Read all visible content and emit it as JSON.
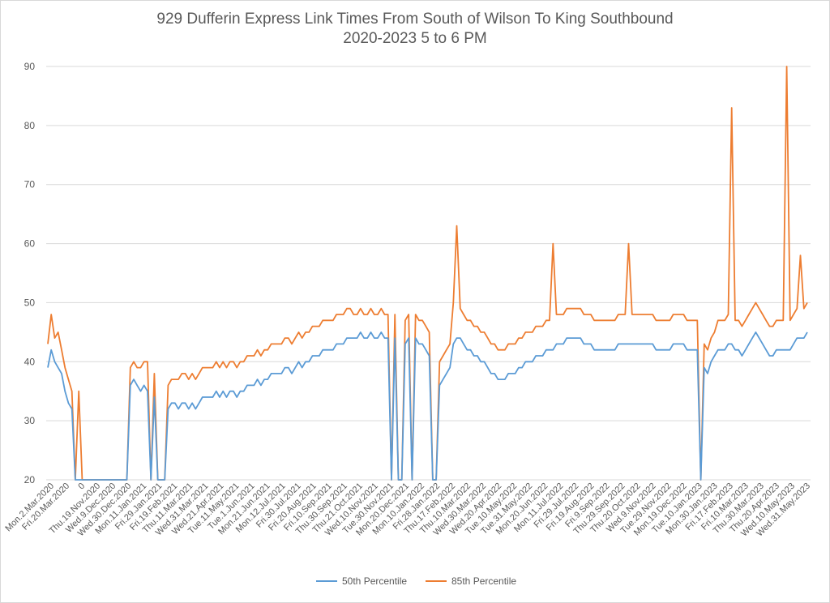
{
  "chart_data": {
    "type": "line",
    "title": "929 Dufferin Express Link Times From South of Wilson To King Southbound",
    "subtitle": "2020-2023 5 to 6 PM",
    "ylim": [
      20,
      90
    ],
    "yticks": [
      20,
      30,
      40,
      50,
      60,
      70,
      80,
      90
    ],
    "grid": true,
    "legend_position": "bottom",
    "x_tick_labels": [
      "Mon.2.Mar.2020",
      "Fri.20.Mar.2020",
      "0",
      "Thu.19.Nov.2020",
      "Wed.9.Dec.2020",
      "Wed.30.Dec.2020",
      "Mon.11.Jan.2021",
      "Fri.29.Jan.2021",
      "Fri.19.Feb.2021",
      "Thu.11.Mar.2021",
      "Wed.31.Mar.2021",
      "Wed.21.Apr.2021",
      "Tue.11.May.2021",
      "Tue.1.Jun.2021",
      "Mon.21.Jun.2021",
      "Mon.12.Jul.2021",
      "Fri.30.Jul.2021",
      "Fri.20.Aug.2021",
      "Fri.10.Sep.2021",
      "Thu.30.Sep.2021",
      "Thu.21.Oct.2021",
      "Wed.10.Nov.2021",
      "Tue.30.Nov.2021",
      "Mon.20.Dec.2021",
      "Mon.10.Jan.2022",
      "Fri.28.Jan.2022",
      "Thu.17.Feb.2022",
      "Thu.10.Mar.2022",
      "Wed.30.Mar.2022",
      "Wed.20.Apr.2022",
      "Tue.10.May.2022",
      "Tue.31.May.2022",
      "Mon.20.Jun.2022",
      "Mon.11.Jul.2022",
      "Fri.29.Jul.2022",
      "Fri.19.Aug.2022",
      "Fri.9.Sep.2022",
      "Thu.29.Sep.2022",
      "Thu.20.Oct.2022",
      "Wed.9.Nov.2022",
      "Tue.29.Nov.2022",
      "Mon.19.Dec.2022",
      "Tue.10.Jan.2023",
      "Mon.30.Jan.2023",
      "Fri.17.Feb.2023",
      "Fri.10.Mar.2023",
      "Thu.30.Mar.2023",
      "Thu.20.Apr.2023",
      "Wed.10.May.2023",
      "Wed.31.May.2023"
    ],
    "series": [
      {
        "name": "50th Percentile",
        "color": "#5b9bd5",
        "values": [
          39,
          42,
          40,
          39,
          38,
          35,
          33,
          32,
          null,
          null,
          null,
          null,
          null,
          null,
          null,
          null,
          null,
          null,
          null,
          null,
          null,
          null,
          null,
          null,
          36,
          37,
          36,
          35,
          36,
          35,
          null,
          34,
          null,
          null,
          null,
          32,
          33,
          33,
          32,
          33,
          33,
          32,
          33,
          32,
          33,
          34,
          34,
          34,
          34,
          35,
          34,
          35,
          34,
          35,
          35,
          34,
          35,
          35,
          36,
          36,
          36,
          37,
          36,
          37,
          37,
          38,
          38,
          38,
          38,
          39,
          39,
          38,
          39,
          40,
          39,
          40,
          40,
          41,
          41,
          41,
          42,
          42,
          42,
          42,
          43,
          43,
          43,
          44,
          44,
          44,
          44,
          45,
          44,
          44,
          45,
          44,
          44,
          45,
          44,
          44,
          null,
          44,
          null,
          null,
          43,
          44,
          null,
          44,
          43,
          43,
          42,
          41,
          null,
          null,
          36,
          37,
          38,
          39,
          43,
          44,
          44,
          43,
          42,
          42,
          41,
          41,
          40,
          40,
          39,
          38,
          38,
          37,
          37,
          37,
          38,
          38,
          38,
          39,
          39,
          40,
          40,
          40,
          41,
          41,
          41,
          42,
          42,
          42,
          43,
          43,
          43,
          44,
          44,
          44,
          44,
          44,
          43,
          43,
          43,
          42,
          42,
          42,
          42,
          42,
          42,
          42,
          43,
          43,
          43,
          43,
          43,
          43,
          43,
          43,
          43,
          43,
          43,
          42,
          42,
          42,
          42,
          42,
          43,
          43,
          43,
          43,
          42,
          42,
          42,
          42,
          null,
          39,
          38,
          40,
          41,
          42,
          42,
          42,
          43,
          43,
          42,
          42,
          41,
          42,
          43,
          44,
          45,
          44,
          43,
          42,
          41,
          41,
          42,
          42,
          42,
          42,
          42,
          43,
          44,
          44,
          44,
          45
        ]
      },
      {
        "name": "85th Percentile",
        "color": "#ed7d31",
        "values": [
          43,
          48,
          44,
          45,
          42,
          39,
          37,
          35,
          null,
          35,
          null,
          null,
          null,
          null,
          null,
          null,
          null,
          null,
          null,
          null,
          null,
          null,
          null,
          null,
          39,
          40,
          39,
          39,
          40,
          40,
          null,
          38,
          null,
          null,
          null,
          36,
          37,
          37,
          37,
          38,
          38,
          37,
          38,
          37,
          38,
          39,
          39,
          39,
          39,
          40,
          39,
          40,
          39,
          40,
          40,
          39,
          40,
          40,
          41,
          41,
          41,
          42,
          41,
          42,
          42,
          43,
          43,
          43,
          43,
          44,
          44,
          43,
          44,
          45,
          44,
          45,
          45,
          46,
          46,
          46,
          47,
          47,
          47,
          47,
          48,
          48,
          48,
          49,
          49,
          48,
          48,
          49,
          48,
          48,
          49,
          48,
          48,
          49,
          48,
          48,
          null,
          48,
          null,
          null,
          47,
          48,
          null,
          48,
          47,
          47,
          46,
          45,
          null,
          null,
          40,
          41,
          42,
          43,
          50,
          63,
          49,
          48,
          47,
          47,
          46,
          46,
          45,
          45,
          44,
          43,
          43,
          42,
          42,
          42,
          43,
          43,
          43,
          44,
          44,
          45,
          45,
          45,
          46,
          46,
          46,
          47,
          47,
          60,
          48,
          48,
          48,
          49,
          49,
          49,
          49,
          49,
          48,
          48,
          48,
          47,
          47,
          47,
          47,
          47,
          47,
          47,
          48,
          48,
          48,
          60,
          48,
          48,
          48,
          48,
          48,
          48,
          48,
          47,
          47,
          47,
          47,
          47,
          48,
          48,
          48,
          48,
          47,
          47,
          47,
          47,
          null,
          43,
          42,
          44,
          45,
          47,
          47,
          47,
          48,
          83,
          47,
          47,
          46,
          47,
          48,
          49,
          50,
          49,
          48,
          47,
          46,
          46,
          47,
          47,
          47,
          90,
          47,
          48,
          49,
          58,
          49,
          50
        ]
      }
    ]
  }
}
